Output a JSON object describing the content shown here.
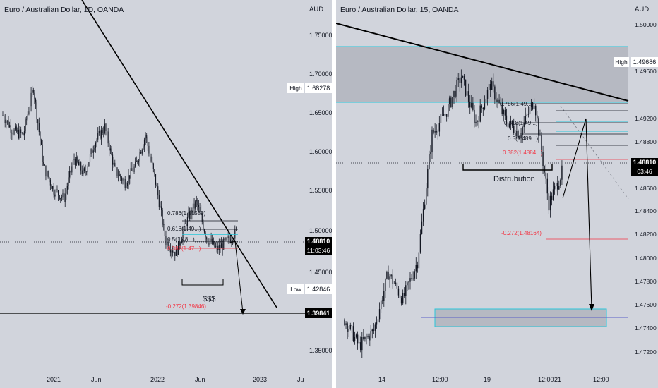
{
  "layout_colors": {
    "background": "#d1d4dc",
    "candle": "#131722",
    "trendline": "#000000",
    "zone_fill": "#9598a1",
    "zone_border": "#26c6da",
    "fib_red": "#f23645",
    "fib_gray": "#131722",
    "last_price_bg": "#000000",
    "last_price_text": "#ffffff"
  },
  "left": {
    "title": "Euro / Australian Dollar, 1D, OANDA",
    "currency": "AUD",
    "high_label": "High",
    "high_value": "1.68278",
    "low_label": "Low",
    "low_value": "1.42846",
    "last_price": "1.48810",
    "countdown": "11:03:46",
    "target_price": "1.39841",
    "fib_labels": [
      "0.786(1.51589)",
      "0.618(1.49...)",
      "0.5(1.48...)",
      "0.382(1.47...)",
      "-0.272(1.39846)"
    ],
    "annotation": "$$$",
    "price_ticks": [
      "1.75000",
      "1.70000",
      "1.65000",
      "1.60000",
      "1.55000",
      "1.50000",
      "1.45000",
      "1.35000"
    ],
    "time_ticks": [
      "2021",
      "Jun",
      "2022",
      "Jun",
      "2023",
      "Ju"
    ]
  },
  "right": {
    "title": "Euro / Australian Dollar, 15, OANDA",
    "currency": "AUD",
    "high_label": "High",
    "high_value": "1.49686",
    "last_price": "1.48810",
    "countdown": "03:46",
    "fib_labels": [
      "0.786(1.49...)",
      "0.618(1.49...)",
      "0.5(1.489...)",
      "0.382(1.4884...)",
      "-0.272(1.48164)"
    ],
    "annotation": "Distrubution",
    "price_ticks": [
      "1.50000",
      "1.49600",
      "1.49200",
      "1.48800",
      "1.48600",
      "1.48400",
      "1.48200",
      "1.48000",
      "1.47800",
      "1.47600",
      "1.47400",
      "1.47200"
    ],
    "time_ticks": [
      "14",
      "12:00",
      "19",
      "12:00",
      "21",
      "12:00"
    ]
  },
  "chart_data": [
    {
      "type": "line",
      "title": "Euro / Australian Dollar, 1D, OANDA",
      "y_unit": "AUD",
      "ylim": [
        1.33,
        1.77
      ],
      "x_range": [
        "2020-09",
        "2023-07"
      ],
      "x": [
        "2020-09",
        "2020-11",
        "2021-01",
        "2021-02",
        "2021-03",
        "2021-04",
        "2021-05",
        "2021-06",
        "2021-07",
        "2021-08",
        "2021-09",
        "2021-10",
        "2021-11",
        "2021-12",
        "2022-01",
        "2022-02",
        "2022-03",
        "2022-04",
        "2022-05",
        "2022-06",
        "2022-07",
        "2022-08",
        "2022-09",
        "2022-10"
      ],
      "series": [
        {
          "values": [
            1.64,
            1.62,
            1.615,
            1.675,
            1.575,
            1.545,
            1.535,
            1.585,
            1.565,
            1.605,
            1.625,
            1.57,
            1.555,
            1.575,
            1.615,
            1.555,
            1.48,
            1.465,
            1.505,
            1.53,
            1.485,
            1.47,
            1.48,
            1.493
          ]
        }
      ],
      "levels": [
        {
          "label": "High",
          "value": 1.68278
        },
        {
          "label": "Low",
          "value": 1.42846
        },
        {
          "label": "0.786",
          "value": 1.51589
        },
        {
          "label": "-0.272",
          "value": 1.39846
        },
        {
          "label": "last",
          "value": 1.4881
        },
        {
          "label": "target",
          "value": 1.39841
        }
      ],
      "grid": false
    },
    {
      "type": "line",
      "title": "Euro / Australian Dollar, 15, OANDA",
      "y_unit": "AUD",
      "ylim": [
        1.471,
        1.501
      ],
      "x_range": [
        "13",
        "22 12:00"
      ],
      "x": [
        "13",
        "13 12:00",
        "14",
        "14 06:00",
        "14 12:00",
        "15",
        "15 12:00",
        "16",
        "16 12:00",
        "19",
        "19 12:00",
        "20",
        "20 12:00",
        "21",
        "21 06:00",
        "21 12:00"
      ],
      "series": [
        {
          "values": [
            1.4745,
            1.4722,
            1.4735,
            1.4785,
            1.4762,
            1.4795,
            1.4905,
            1.4925,
            1.4955,
            1.4915,
            1.4948,
            1.4918,
            1.4905,
            1.4935,
            1.4845,
            1.4875
          ]
        }
      ],
      "levels": [
        {
          "label": "High",
          "value": 1.49686
        },
        {
          "label": "0.382",
          "value": 1.4884
        },
        {
          "label": "-0.272",
          "value": 1.48164
        },
        {
          "label": "last",
          "value": 1.4881
        }
      ],
      "zones": [
        {
          "label": "supply",
          "from": 1.4935,
          "to": 1.4985
        },
        {
          "label": "demand",
          "from": 1.4741,
          "to": 1.4754
        }
      ],
      "grid": false
    }
  ]
}
